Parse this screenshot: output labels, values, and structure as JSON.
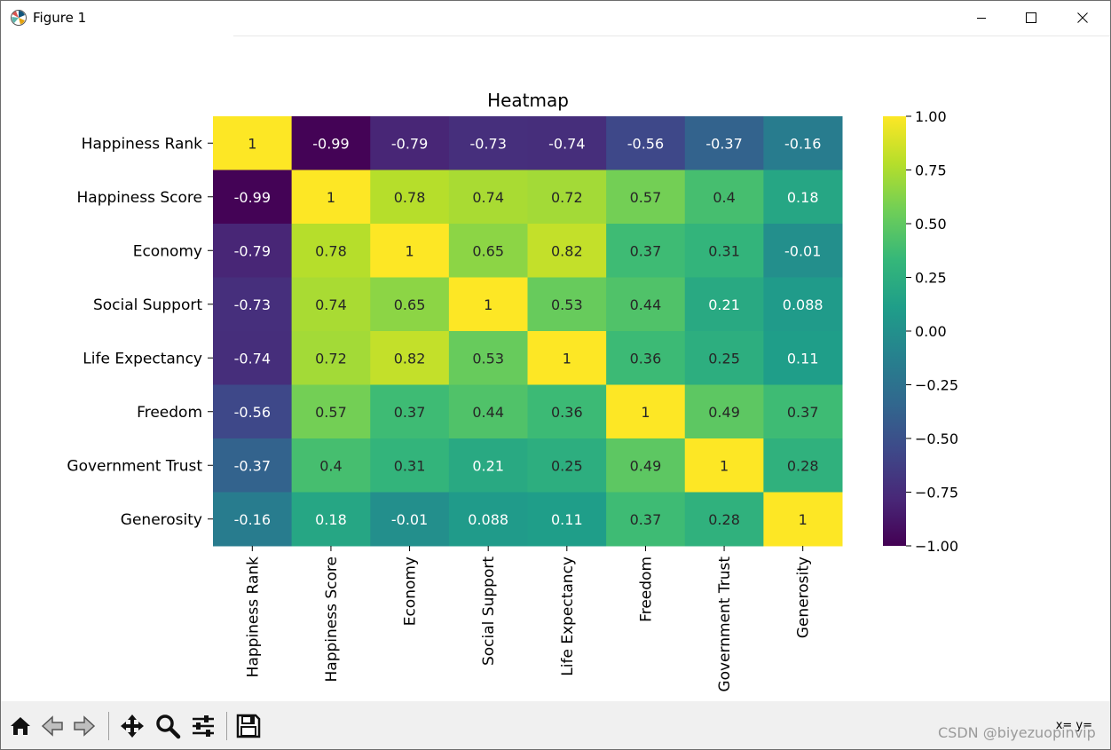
{
  "window": {
    "title": "Figure 1",
    "coord_readout": "x= y="
  },
  "watermark": "CSDN @biyezuopinvip",
  "colors": {
    "cmap_viridis": [
      "#440154",
      "#482878",
      "#3e4989",
      "#31688e",
      "#26828e",
      "#1f9e89",
      "#35b779",
      "#6ece58",
      "#b5de2b",
      "#fde725"
    ],
    "toolbar_bg": "#f0f0f0"
  },
  "icons": [
    "matplotlib-icon",
    "minimize-icon",
    "maximize-icon",
    "close-icon",
    "home-icon",
    "back-arrow-icon",
    "forward-arrow-icon",
    "pan-icon",
    "zoom-icon",
    "configure-subplots-icon",
    "save-icon"
  ],
  "chart_data": {
    "type": "heatmap",
    "title": "Heatmap",
    "labels": [
      "Happiness Rank",
      "Happiness Score",
      "Economy",
      "Social Support",
      "Life Expectancy",
      "Freedom",
      "Government Trust",
      "Generosity"
    ],
    "matrix": [
      [
        1,
        -0.99,
        -0.79,
        -0.73,
        -0.74,
        -0.56,
        -0.37,
        -0.16
      ],
      [
        -0.99,
        1,
        0.78,
        0.74,
        0.72,
        0.57,
        0.4,
        0.18
      ],
      [
        -0.79,
        0.78,
        1,
        0.65,
        0.82,
        0.37,
        0.31,
        -0.01
      ],
      [
        -0.73,
        0.74,
        0.65,
        1,
        0.53,
        0.44,
        0.21,
        0.088
      ],
      [
        -0.74,
        0.72,
        0.82,
        0.53,
        1,
        0.36,
        0.25,
        0.11
      ],
      [
        -0.56,
        0.57,
        0.37,
        0.44,
        0.36,
        1,
        0.49,
        0.37
      ],
      [
        -0.37,
        0.4,
        0.31,
        0.21,
        0.25,
        0.49,
        1,
        0.28
      ],
      [
        -0.16,
        0.18,
        -0.01,
        0.088,
        0.11,
        0.37,
        0.28,
        1
      ]
    ],
    "colorbar": {
      "range": [
        -1,
        1
      ],
      "ticks": [
        1,
        0.75,
        0.5,
        0.25,
        0,
        -0.25,
        -0.5,
        -0.75,
        -1
      ],
      "tick_labels": [
        "1.00",
        "0.75",
        "0.50",
        "0.25",
        "0.00",
        "−0.25",
        "−0.50",
        "−0.75",
        "−1.00"
      ]
    }
  }
}
